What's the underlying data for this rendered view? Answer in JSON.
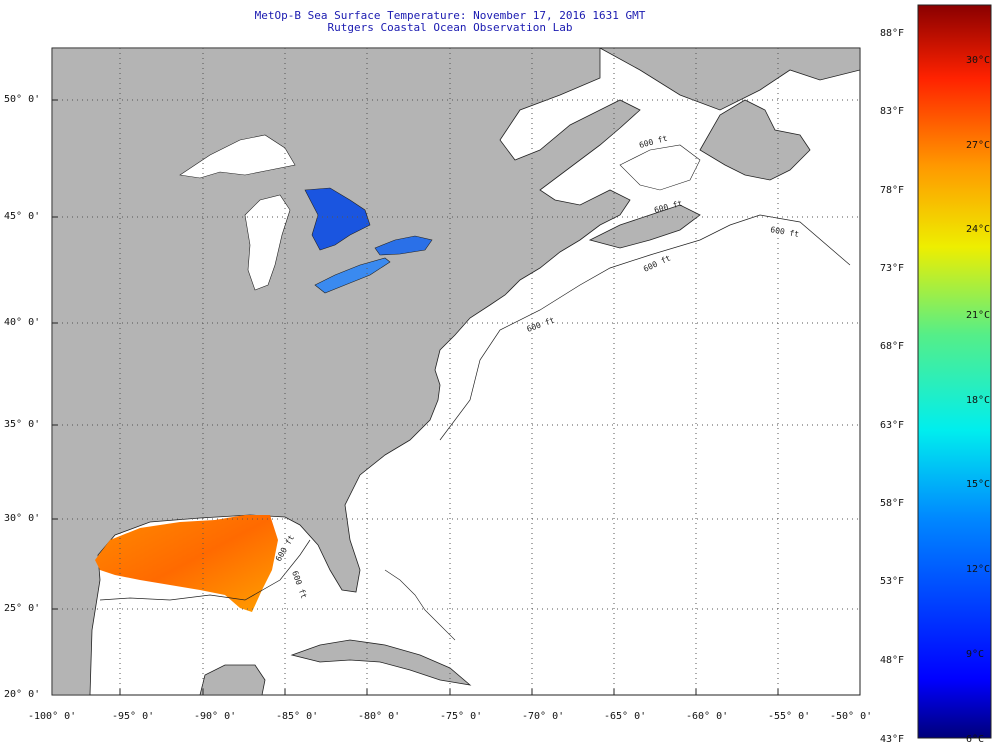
{
  "header": {
    "title_line1": "MetOp-B Sea Surface Temperature:  November 17, 2016 1631 GMT",
    "title_line2": "Rutgers Coastal Ocean Observation Lab"
  },
  "map": {
    "lat_labels": [
      "50° 0'",
      "45° 0'",
      "40° 0'",
      "35° 0'",
      "30° 0'",
      "25° 0'",
      "20° 0'"
    ],
    "lon_labels": [
      "-100° 0'",
      "-95° 0'",
      "-90° 0'",
      "-85° 0'",
      "-80° 0'",
      "-75° 0'",
      "-70° 0'",
      "-65° 0'",
      "-60° 0'",
      "-55° 0'",
      "-50° 0'"
    ],
    "isobath_labels": [
      "600 ft",
      "600 ft",
      "600 ft",
      "600 ft",
      "600 ft",
      "600 ft",
      "600 ft"
    ],
    "colors": {
      "land": "#b4b4b4",
      "ocean": "#ffffff",
      "grid": "#555555"
    }
  },
  "colorbar": {
    "fahrenheit_labels": [
      "88°F",
      "83°F",
      "78°F",
      "73°F",
      "68°F",
      "63°F",
      "58°F",
      "53°F",
      "48°F",
      "43°F"
    ],
    "celsius_labels": [
      "30°C",
      "27°C",
      "24°C",
      "21°C",
      "18°C",
      "15°C",
      "12°C",
      "9°C",
      "6°C"
    ],
    "range_c": [
      6,
      31
    ]
  }
}
